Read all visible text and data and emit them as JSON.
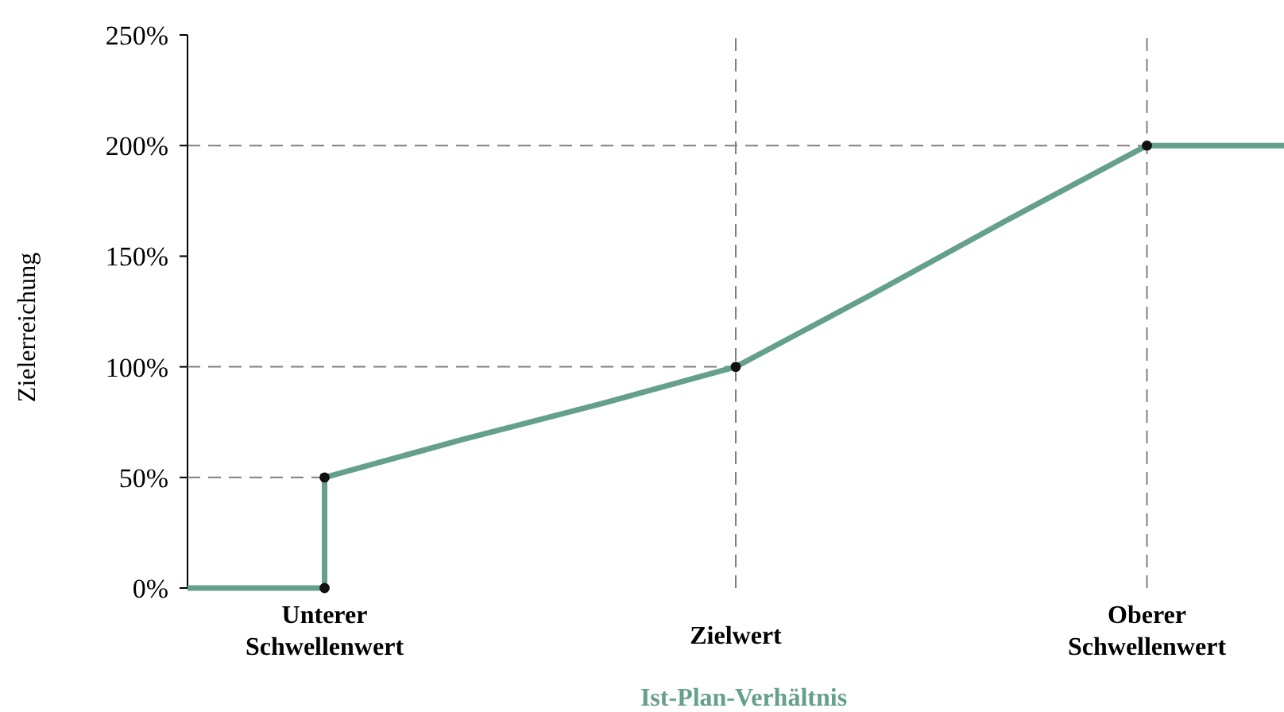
{
  "chart_data": {
    "type": "line",
    "xlabel": "Ist-Plan-Verhältnis",
    "ylabel": "Zielerreichung",
    "categories": [
      null,
      "Unterer Schwellenwert",
      null,
      null,
      "Zielwert",
      null,
      null,
      "Oberer Schwellenwert",
      null
    ],
    "series": [
      {
        "color": "#808080",
        "line_style": "dashed",
        "marker": "none",
        "values": [
          50,
          50,
          null,
          null,
          null,
          null,
          null,
          null,
          null
        ]
      },
      {
        "color": "#808080",
        "line_style": "dashed",
        "marker": "none",
        "values": [
          100,
          100,
          100,
          100,
          100,
          null,
          null,
          null,
          null
        ]
      },
      {
        "type": "step",
        "color": "#65a08d",
        "marker": "none",
        "values": [
          0,
          50,
          null,
          null,
          null,
          null,
          null,
          null,
          null
        ]
      },
      {
        "color": "#65a08d",
        "marker": "none",
        "values": [
          null,
          50,
          67,
          83,
          100,
          133,
          167,
          200,
          200
        ]
      },
      {
        "type": "scatter",
        "color": "#111111",
        "values": [
          null,
          0,
          null,
          null,
          100,
          null,
          null,
          200,
          null
        ]
      },
      {
        "type": "scatter",
        "color": "#111111",
        "values": [
          null,
          50,
          null,
          null,
          null,
          null,
          null,
          null,
          null
        ]
      }
    ],
    "ylim": [
      0,
      250
    ],
    "yticks": [
      {
        "value": 0,
        "label": "0%"
      },
      {
        "value": 50,
        "label": "50%"
      },
      {
        "value": 100,
        "label": "100%"
      },
      {
        "value": 150,
        "label": "150%"
      },
      {
        "value": 200,
        "label": "200%"
      },
      {
        "value": 250,
        "label": "250%"
      }
    ],
    "ref_lines": [
      {
        "axis": "y",
        "value": 200,
        "line_style": "dashed",
        "color": "#808080"
      },
      {
        "axis": "x",
        "value": "Zielwert",
        "line_style": "dashed",
        "color": "#808080"
      },
      {
        "axis": "x",
        "value": "Oberer Schwellenwert",
        "line_style": "dashed",
        "color": "#808080"
      }
    ],
    "marker": "circle",
    "line_style": "solid",
    "grid": false
  }
}
